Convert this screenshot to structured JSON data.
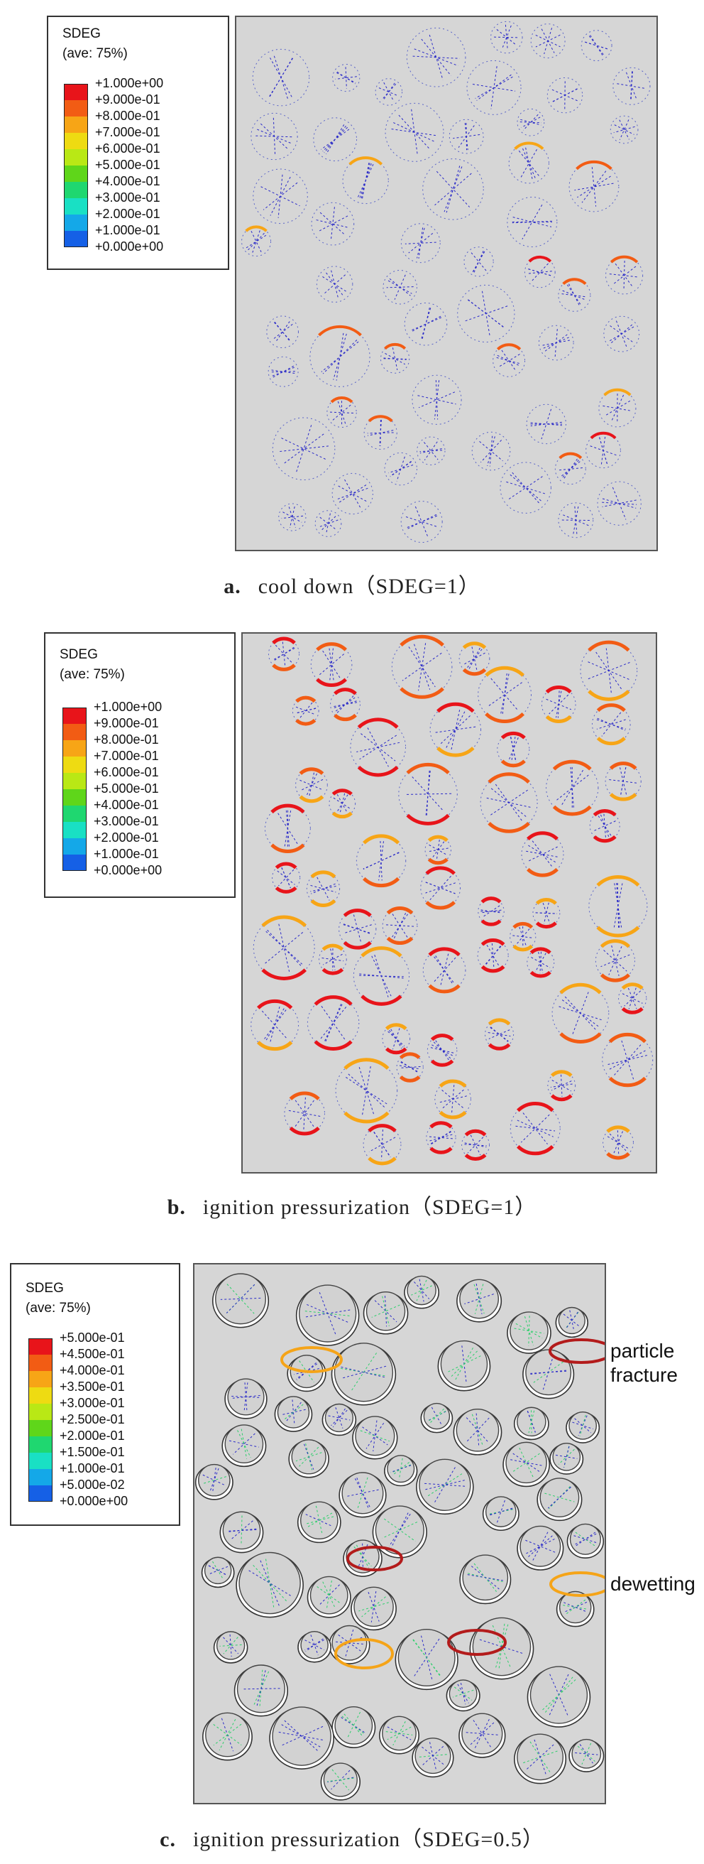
{
  "panels": [
    {
      "caption_letter": "a.",
      "caption_text": "cool down（SDEG=1）",
      "legend": {
        "title": "SDEG",
        "subtitle": "(ave: 75%)",
        "labels": [
          "+1.000e+00",
          "+9.000e-01",
          "+8.000e-01",
          "+7.000e-01",
          "+6.000e-01",
          "+5.000e-01",
          "+4.000e-01",
          "+3.000e-01",
          "+2.000e-01",
          "+1.000e-01",
          "+0.000e+00"
        ]
      }
    },
    {
      "caption_letter": "b.",
      "caption_text": "ignition pressurization（SDEG=1）",
      "legend": {
        "title": "SDEG",
        "subtitle": "(ave: 75%)",
        "labels": [
          "+1.000e+00",
          "+9.000e-01",
          "+8.000e-01",
          "+7.000e-01",
          "+6.000e-01",
          "+5.000e-01",
          "+4.000e-01",
          "+3.000e-01",
          "+2.000e-01",
          "+1.000e-01",
          "+0.000e+00"
        ]
      }
    },
    {
      "caption_letter": "c.",
      "caption_text": "ignition pressurization（SDEG=0.5）",
      "legend": {
        "title": "SDEG",
        "subtitle": "(ave: 75%)",
        "labels": [
          "+5.000e-01",
          "+4.500e-01",
          "+4.000e-01",
          "+3.500e-01",
          "+3.000e-01",
          "+2.500e-01",
          "+2.000e-01",
          "+1.500e-01",
          "+1.000e-01",
          "+5.000e-02",
          "+0.000e+00"
        ]
      },
      "annotations": {
        "particle_fracture": "particle\nfracture",
        "dewetting": "dewetting"
      }
    }
  ],
  "colors": {
    "scale": [
      "#e8141a",
      "#f25c14",
      "#f7a516",
      "#eedb12",
      "#b9e815",
      "#5fd61a",
      "#1fd770",
      "#19e0c4",
      "#14a8e8",
      "#1560e6",
      "#1616d6"
    ],
    "plot_bg": "#d6d6d6",
    "highlight_red": "#b31b1b",
    "highlight_orange": "#f5a418"
  }
}
